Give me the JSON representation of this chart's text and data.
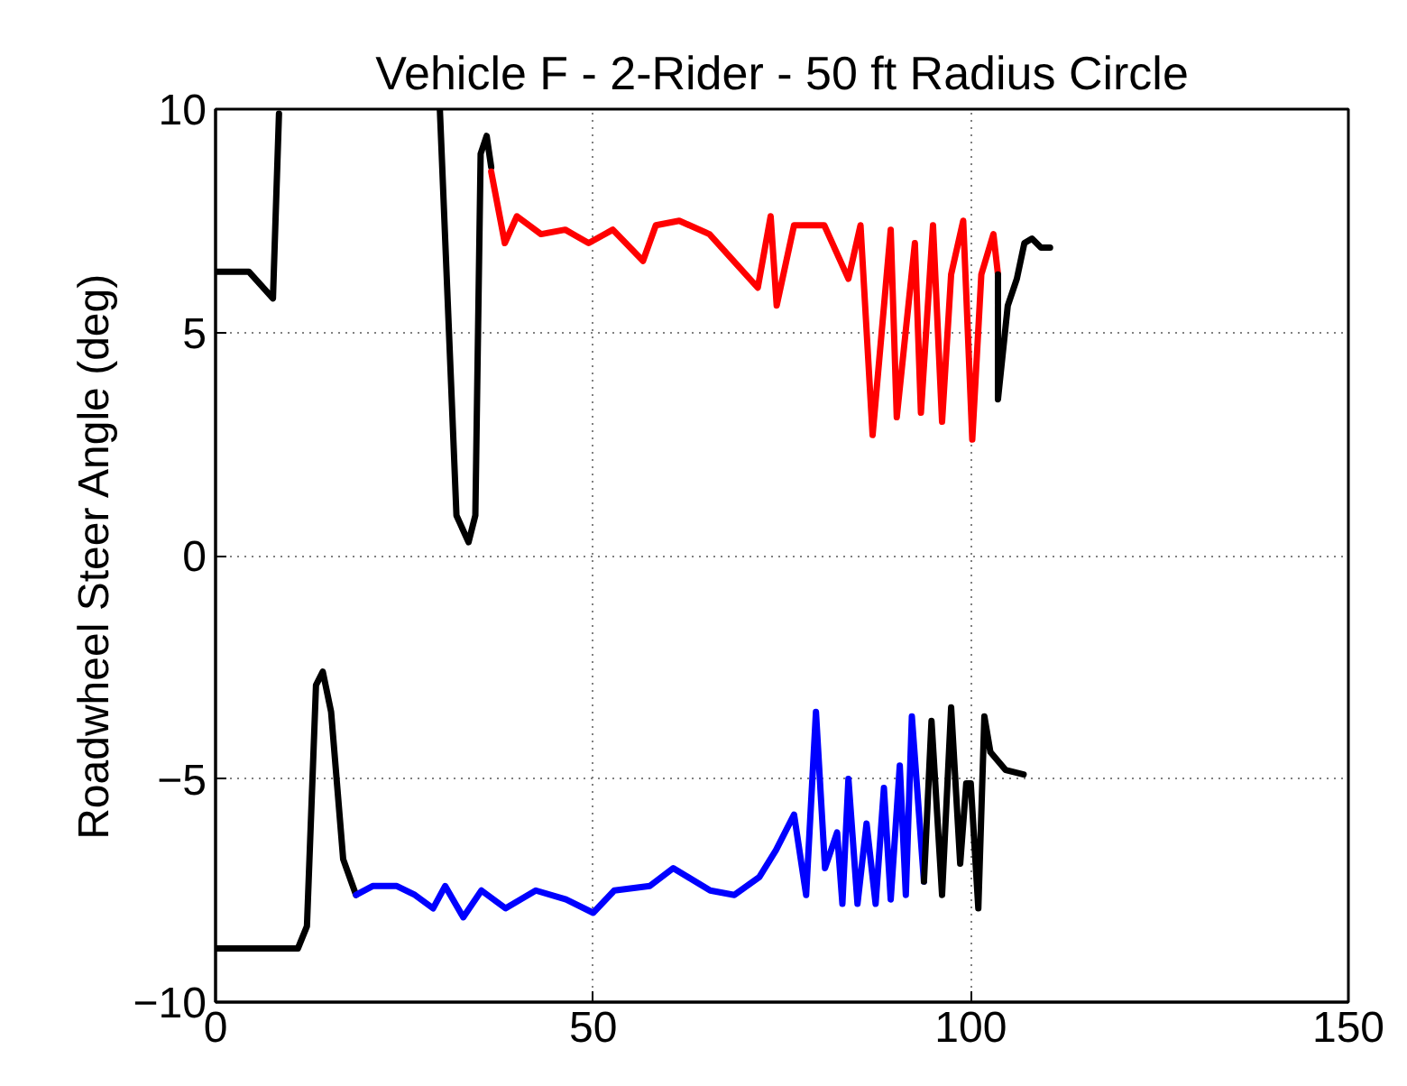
{
  "chart_data": {
    "type": "line",
    "title": "Vehicle F - 2-Rider - 50 ft Radius Circle",
    "ylabel": "Roadwheel Steer Angle (deg)",
    "xlim": [
      0,
      150
    ],
    "ylim": [
      -10,
      10
    ],
    "xticks": [
      0,
      50,
      100,
      150
    ],
    "yticks": [
      -10,
      -5,
      0,
      5,
      10
    ],
    "grid": true,
    "line_style": "solid",
    "series": [
      {
        "color": "#000000",
        "x": [
          0,
          4.4,
          7.6,
          8.4,
          8.9,
          29.7,
          31.9,
          33.5,
          34.4,
          35.1,
          35.9,
          36.5
        ],
        "values": [
          6.36,
          6.36,
          5.76,
          9.9,
          null,
          10,
          0.9,
          0.3,
          0.9,
          9.0,
          9.4,
          8.7
        ]
      },
      {
        "color": "#ff0000",
        "x": [
          36.5,
          38.3,
          39.9,
          43.1,
          46.3,
          49.4,
          52.6,
          56.6,
          58.3,
          61.4,
          65.4,
          68.6,
          71.8,
          73.5,
          74.3,
          76.6,
          80.6,
          83.8,
          85.4,
          87.0,
          89.4,
          90.2,
          92.6,
          93.4,
          95.0,
          96.2,
          97.4,
          99.0,
          100.2,
          101.4,
          103.0,
          103.6
        ],
        "values": [
          8.6,
          7.0,
          7.6,
          7.2,
          7.3,
          7.0,
          7.3,
          6.6,
          7.4,
          7.5,
          7.2,
          6.6,
          6.0,
          7.6,
          5.6,
          7.4,
          7.4,
          6.2,
          7.4,
          2.7,
          7.3,
          3.1,
          7.0,
          3.2,
          7.4,
          3.0,
          6.3,
          7.5,
          2.6,
          6.3,
          7.2,
          6.3
        ]
      },
      {
        "color": "#000000",
        "x": [
          103.6,
          103.6,
          104.9,
          106.1,
          107.1,
          108.1,
          109.3,
          110.5
        ],
        "values": [
          6.3,
          3.5,
          5.6,
          6.2,
          7.0,
          7.1,
          6.9,
          6.9
        ]
      },
      {
        "color": "#000000",
        "x": [
          0,
          10.9,
          12.1,
          13.3,
          14.2,
          15.3,
          16.9,
          18.6
        ],
        "values": [
          -8.8,
          -8.8,
          -8.3,
          -2.9,
          -2.6,
          -3.5,
          -6.8,
          -7.6
        ]
      },
      {
        "color": "#0000ff",
        "x": [
          18.6,
          20.8,
          24.0,
          26.4,
          28.8,
          30.4,
          32.8,
          35.2,
          38.4,
          42.4,
          46.4,
          50.0,
          52.8,
          57.5,
          60.6,
          65.5,
          68.7,
          72.0,
          74.2,
          76.6,
          78.2,
          79.5,
          80.7,
          82.3,
          83.0,
          83.8,
          85.0,
          86.2,
          87.4,
          88.5,
          89.4,
          90.6,
          91.4,
          92.2,
          93.8
        ],
        "values": [
          -7.6,
          -7.4,
          -7.4,
          -7.6,
          -7.9,
          -7.4,
          -8.1,
          -7.5,
          -7.9,
          -7.5,
          -7.7,
          -8.0,
          -7.5,
          -7.4,
          -7.0,
          -7.5,
          -7.6,
          -7.2,
          -6.6,
          -5.8,
          -7.6,
          -3.5,
          -7.0,
          -6.2,
          -7.8,
          -5.0,
          -7.8,
          -6.0,
          -7.8,
          -5.2,
          -7.7,
          -4.7,
          -7.6,
          -3.6,
          -7.3
        ]
      },
      {
        "color": "#000000",
        "x": [
          93.8,
          94.8,
          96.2,
          97.4,
          98.6,
          99.4,
          100.0,
          101.0,
          101.8,
          102.6,
          104.6,
          107.0
        ],
        "values": [
          -7.3,
          -3.7,
          -7.6,
          -3.4,
          -6.9,
          -5.1,
          -5.1,
          -7.9,
          -3.6,
          -4.4,
          -4.8,
          -4.9
        ]
      }
    ]
  }
}
